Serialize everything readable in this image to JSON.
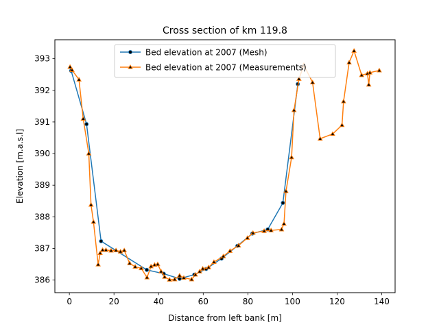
{
  "chart_data": {
    "type": "line",
    "title": "Cross section of km 119.8",
    "xlabel": "Distance from left bank [m]",
    "ylabel": "Elevation [m.a.s.l]",
    "xlim": [
      -6.5,
      146
    ],
    "ylim": [
      385.6,
      393.6
    ],
    "xticks": [
      0,
      20,
      40,
      60,
      80,
      100,
      120,
      140
    ],
    "yticks": [
      386,
      387,
      388,
      389,
      390,
      391,
      392,
      393
    ],
    "grid": false,
    "legend_position": "top-center",
    "series": [
      {
        "name": "Bed elevation at 2007 (Mesh)",
        "color": "#1f77b4",
        "marker": "circle",
        "marker_color": "#000000",
        "x": [
          0.8,
          7.7,
          14.2,
          34.7,
          42.3,
          49.4,
          56.0,
          61.3,
          68.2,
          75.3,
          82.0,
          88.9,
          95.7,
          102.4
        ],
        "y": [
          392.62,
          390.93,
          387.23,
          386.32,
          386.2,
          386.04,
          386.17,
          386.35,
          386.68,
          387.08,
          387.47,
          387.6,
          388.44,
          392.2
        ]
      },
      {
        "name": "Bed elevation at 2007 (Measurements)",
        "color": "#ff7f0e",
        "marker": "triangle",
        "marker_color": "#000000",
        "x": [
          0.3,
          1.2,
          4.3,
          6.2,
          8.7,
          9.7,
          10.8,
          12.9,
          13.8,
          14.9,
          16.4,
          18.7,
          20.9,
          22.9,
          24.6,
          27.0,
          29.5,
          32.2,
          34.8,
          36.6,
          38.2,
          39.6,
          41.1,
          42.7,
          44.9,
          47.2,
          49.4,
          51.3,
          54.8,
          56.5,
          58.4,
          59.8,
          62.4,
          64.8,
          69.0,
          72.0,
          75.8,
          79.8,
          82.3,
          87.3,
          90.4,
          95.1,
          96.2,
          97.1,
          99.6,
          100.7,
          102.9,
          105.1,
          109.0,
          112.4,
          118.0,
          122.2,
          122.9,
          125.4,
          127.6,
          131.0,
          133.6,
          134.2,
          134.7,
          138.9
        ],
        "y": [
          392.74,
          392.64,
          392.34,
          391.1,
          390.0,
          388.38,
          387.84,
          386.49,
          386.85,
          386.95,
          386.95,
          386.93,
          386.94,
          386.9,
          386.94,
          386.53,
          386.42,
          386.37,
          386.08,
          386.43,
          386.48,
          386.5,
          386.27,
          386.1,
          386.01,
          386.02,
          386.14,
          386.07,
          386.02,
          386.17,
          386.27,
          386.36,
          386.4,
          386.57,
          386.75,
          386.92,
          387.09,
          387.33,
          387.49,
          387.55,
          387.57,
          387.6,
          387.78,
          388.81,
          389.88,
          391.37,
          392.36,
          392.8,
          392.25,
          390.47,
          390.62,
          390.9,
          391.65,
          392.88,
          393.25,
          392.48,
          392.53,
          392.18,
          392.56,
          392.63
        ]
      }
    ]
  }
}
